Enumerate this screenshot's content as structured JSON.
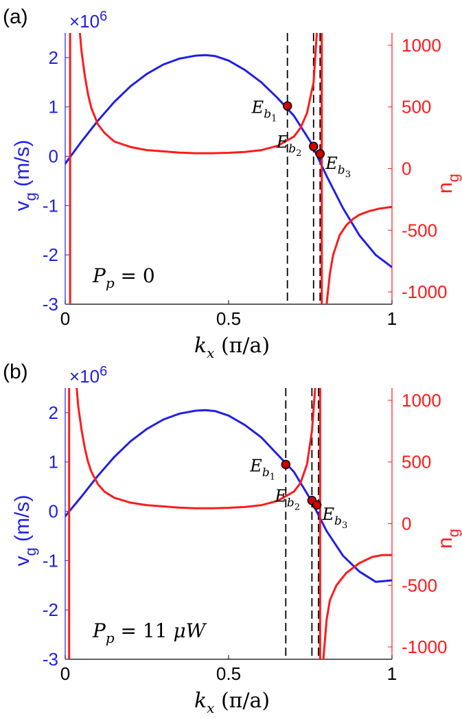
{
  "colors": {
    "left_axis": "#1f1fe6",
    "right_axis": "#ff1a1a",
    "marker_fill": "#d40000",
    "guide": "#000000"
  },
  "chart_data": [
    {
      "type": "line",
      "panel_label": "(a)",
      "annotation": {
        "prefix": "P",
        "sub": "p",
        "rhs": "0",
        "unit": ""
      },
      "left_scale_label": "×10",
      "left_scale_exp": "6",
      "xlabel": {
        "main": "k",
        "sub": "x",
        "unit": "(π/a)"
      },
      "ylabel_left": {
        "main": "v",
        "sub": "g",
        "unit": " (m/s)"
      },
      "ylabel_right": {
        "main": "n",
        "sub": "g"
      },
      "xlim": [
        0,
        1
      ],
      "ylim_left": [
        -3,
        2.5
      ],
      "ylim_right": [
        -1100,
        1100
      ],
      "xticks": [
        0,
        0.5,
        1
      ],
      "xtick_labels": [
        "0",
        "0.5",
        "1"
      ],
      "yticks_left": [
        -3,
        -2,
        -1,
        0,
        1,
        2
      ],
      "ytick_labels_left": [
        "-3",
        "-2",
        "-1",
        "0",
        "1",
        "2"
      ],
      "yticks_right": [
        -1000,
        -500,
        0,
        500,
        1000
      ],
      "ytick_labels_right": [
        "-1000",
        "-500",
        "0",
        "500",
        "1000"
      ],
      "series": [
        {
          "axis": "left",
          "color": "#1f1fe6",
          "x": [
            0,
            0.05,
            0.1,
            0.15,
            0.2,
            0.25,
            0.3,
            0.35,
            0.4,
            0.43,
            0.46,
            0.5,
            0.55,
            0.6,
            0.65,
            0.7,
            0.75,
            0.8,
            0.85,
            0.9,
            0.95,
            1.0
          ],
          "y": [
            -0.15,
            0.3,
            0.72,
            1.1,
            1.42,
            1.67,
            1.86,
            1.98,
            2.04,
            2.05,
            2.03,
            1.94,
            1.75,
            1.5,
            1.18,
            0.82,
            0.3,
            -0.4,
            -1.05,
            -1.6,
            -2.0,
            -2.25
          ]
        },
        {
          "axis": "right",
          "color": "#ff1a1a",
          "x": [
            0.045,
            0.05,
            0.06,
            0.07,
            0.08,
            0.1,
            0.12,
            0.15,
            0.2,
            0.25,
            0.3,
            0.35,
            0.4,
            0.45,
            0.5,
            0.55,
            0.6,
            0.65,
            0.7,
            0.72,
            0.74,
            0.76,
            0.77
          ],
          "y": [
            1100,
            950,
            750,
            600,
            490,
            360,
            290,
            220,
            175,
            150,
            140,
            130,
            125,
            125,
            128,
            135,
            150,
            185,
            260,
            330,
            450,
            700,
            1100
          ]
        },
        {
          "axis": "right",
          "color": "#ff1a1a",
          "x": [
            0.8,
            0.81,
            0.82,
            0.84,
            0.86,
            0.88,
            0.9,
            0.93,
            0.96,
            1.0
          ],
          "y": [
            -1100,
            -850,
            -700,
            -540,
            -460,
            -410,
            -375,
            -345,
            -325,
            -310
          ]
        },
        {
          "axis": "right",
          "color": "#ff1a1a",
          "x": [
            0.015,
            0.015
          ],
          "y": [
            -1100,
            1100
          ]
        },
        {
          "axis": "right",
          "color": "#ff1a1a",
          "x": [
            0.785,
            0.785
          ],
          "y": [
            -1100,
            1100
          ]
        }
      ],
      "vlines": [
        0.68,
        0.76,
        0.78
      ],
      "points": [
        {
          "label": "E",
          "sub": "b",
          "idx": "1",
          "x": 0.68,
          "y": 1.02
        },
        {
          "label": "E",
          "sub": "b",
          "idx": "2",
          "x": 0.76,
          "y": 0.2
        },
        {
          "label": "E",
          "sub": "b",
          "idx": "3",
          "x": 0.78,
          "y": 0.05
        }
      ]
    },
    {
      "type": "line",
      "panel_label": "(b)",
      "annotation": {
        "prefix": "P",
        "sub": "p",
        "rhs": "11 ",
        "unit": "μW"
      },
      "left_scale_label": "×10",
      "left_scale_exp": "6",
      "xlabel": {
        "main": "k",
        "sub": "x",
        "unit": "(π/a)"
      },
      "ylabel_left": {
        "main": "v",
        "sub": "g",
        "unit": " (m/s)"
      },
      "ylabel_right": {
        "main": "n",
        "sub": "g"
      },
      "xlim": [
        0,
        1
      ],
      "ylim_left": [
        -3,
        2.5
      ],
      "ylim_right": [
        -1100,
        1100
      ],
      "xticks": [
        0,
        0.5,
        1
      ],
      "xtick_labels": [
        "0",
        "0.5",
        "1"
      ],
      "yticks_left": [
        -3,
        -2,
        -1,
        0,
        1,
        2
      ],
      "ytick_labels_left": [
        "-3",
        "-2",
        "-1",
        "0",
        "1",
        "2"
      ],
      "yticks_right": [
        -1000,
        -500,
        0,
        500,
        1000
      ],
      "ytick_labels_right": [
        "-1000",
        "-500",
        "0",
        "500",
        "1000"
      ],
      "series": [
        {
          "axis": "left",
          "color": "#1f1fe6",
          "x": [
            0,
            0.05,
            0.1,
            0.15,
            0.2,
            0.25,
            0.3,
            0.35,
            0.4,
            0.43,
            0.46,
            0.5,
            0.55,
            0.6,
            0.65,
            0.7,
            0.75,
            0.8,
            0.85,
            0.9,
            0.95,
            1.0
          ],
          "y": [
            -0.1,
            0.3,
            0.72,
            1.1,
            1.42,
            1.67,
            1.86,
            1.98,
            2.04,
            2.05,
            2.03,
            1.94,
            1.75,
            1.5,
            1.15,
            0.8,
            0.25,
            -0.4,
            -0.9,
            -1.22,
            -1.43,
            -1.4
          ]
        },
        {
          "axis": "right",
          "color": "#ff1a1a",
          "x": [
            0.035,
            0.04,
            0.05,
            0.06,
            0.07,
            0.08,
            0.1,
            0.12,
            0.15,
            0.2,
            0.25,
            0.3,
            0.35,
            0.4,
            0.45,
            0.5,
            0.55,
            0.6,
            0.65,
            0.7,
            0.72,
            0.74,
            0.755,
            0.765
          ],
          "y": [
            1100,
            950,
            760,
            610,
            500,
            420,
            320,
            260,
            210,
            170,
            150,
            140,
            130,
            125,
            125,
            128,
            135,
            150,
            185,
            260,
            330,
            480,
            750,
            1100
          ]
        },
        {
          "axis": "right",
          "color": "#ff1a1a",
          "x": [
            0.79,
            0.8,
            0.81,
            0.83,
            0.86,
            0.9,
            0.94,
            0.97,
            1.0
          ],
          "y": [
            -1100,
            -780,
            -620,
            -500,
            -400,
            -320,
            -270,
            -255,
            -255
          ]
        },
        {
          "axis": "right",
          "color": "#ff1a1a",
          "x": [
            0.012,
            0.012
          ],
          "y": [
            -1100,
            1100
          ]
        },
        {
          "axis": "right",
          "color": "#ff1a1a",
          "x": [
            0.78,
            0.78
          ],
          "y": [
            -1100,
            1100
          ]
        }
      ],
      "vlines": [
        0.675,
        0.755,
        0.775
      ],
      "points": [
        {
          "label": "E",
          "sub": "b",
          "idx": "1",
          "x": 0.675,
          "y": 0.95
        },
        {
          "label": "E",
          "sub": "b",
          "idx": "2",
          "x": 0.755,
          "y": 0.22
        },
        {
          "label": "E",
          "sub": "b",
          "idx": "3",
          "x": 0.77,
          "y": 0.13
        }
      ]
    }
  ]
}
